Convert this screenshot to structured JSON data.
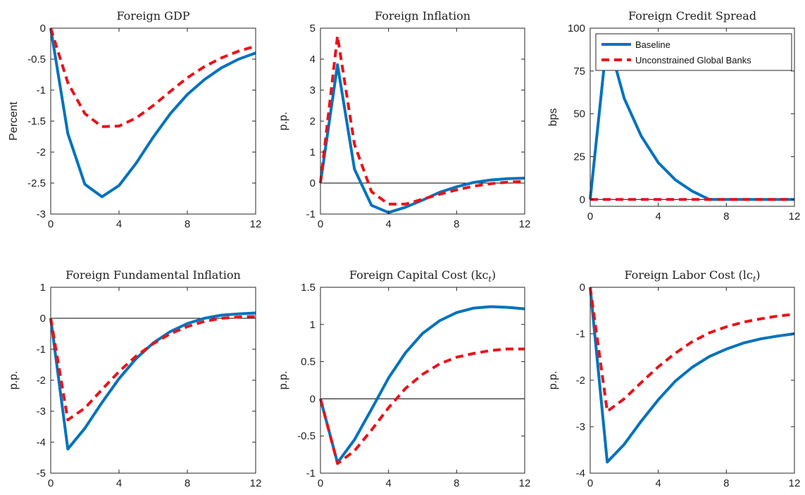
{
  "chart_data": [
    {
      "type": "line",
      "title": "Foreign GDP",
      "ylabel": "Percent",
      "x": [
        0,
        1,
        2,
        3,
        4,
        5,
        6,
        7,
        8,
        9,
        10,
        11,
        12
      ],
      "xticks": [
        0,
        4,
        8,
        12
      ],
      "yticks": [
        0,
        -0.5,
        -1,
        -1.5,
        -2,
        -2.5,
        -3
      ],
      "ytick_labels": [
        "0",
        "-0.5",
        "-1",
        "-1.5",
        "-2",
        "-2.5",
        "-3"
      ],
      "ylim": [
        -3,
        0
      ],
      "zero_line": false,
      "series": [
        {
          "name": "Baseline",
          "values": [
            0,
            -1.7,
            -2.52,
            -2.72,
            -2.54,
            -2.18,
            -1.76,
            -1.38,
            -1.07,
            -0.83,
            -0.64,
            -0.5,
            -0.4
          ]
        },
        {
          "name": "Unconstrained Global Banks",
          "values": [
            0,
            -0.88,
            -1.38,
            -1.59,
            -1.58,
            -1.45,
            -1.25,
            -1.02,
            -0.8,
            -0.62,
            -0.48,
            -0.37,
            -0.29
          ]
        }
      ]
    },
    {
      "type": "line",
      "title": "Foreign Inflation",
      "ylabel": "p.p.",
      "x": [
        0,
        1,
        2,
        3,
        4,
        5,
        6,
        7,
        8,
        9,
        10,
        11,
        12
      ],
      "xticks": [
        0,
        4,
        8,
        12
      ],
      "yticks": [
        5,
        4,
        3,
        2,
        1,
        0,
        -1
      ],
      "ytick_labels": [
        "5",
        "4",
        "3",
        "2",
        "1",
        "0",
        "-1"
      ],
      "ylim": [
        -1,
        5
      ],
      "zero_line": true,
      "series": [
        {
          "name": "Baseline",
          "values": [
            0,
            3.82,
            0.45,
            -0.72,
            -0.95,
            -0.78,
            -0.55,
            -0.3,
            -0.12,
            0.02,
            0.1,
            0.14,
            0.16
          ]
        },
        {
          "name": "Unconstrained Global Banks",
          "values": [
            0,
            4.75,
            1.25,
            -0.28,
            -0.68,
            -0.68,
            -0.52,
            -0.36,
            -0.22,
            -0.1,
            -0.02,
            0.03,
            0.05
          ]
        }
      ]
    },
    {
      "type": "line",
      "title": "Foreign Credit Spread",
      "ylabel": "bps",
      "x": [
        0,
        1,
        2,
        3,
        4,
        5,
        6,
        7,
        8,
        9,
        10,
        11,
        12
      ],
      "xticks": [
        0,
        4,
        8,
        12
      ],
      "yticks": [
        100,
        75,
        50,
        25,
        0
      ],
      "ytick_labels": [
        "100",
        "75",
        "50",
        "25",
        "0"
      ],
      "ylim": [
        -4,
        100
      ],
      "zero_line": true,
      "legend": {
        "position": "top-right",
        "entries": [
          "Baseline",
          "Unconstrained Global Banks"
        ]
      },
      "series": [
        {
          "name": "Baseline",
          "values": [
            0,
            95,
            59,
            37,
            21.5,
            11.5,
            4.8,
            0,
            0,
            0,
            0,
            0,
            0
          ]
        },
        {
          "name": "Unconstrained Global Banks",
          "values": [
            0,
            0,
            0,
            0,
            0,
            0,
            0,
            0,
            0,
            0,
            0,
            0,
            0
          ]
        }
      ]
    },
    {
      "type": "line",
      "title": "Foreign Fundamental Inflation",
      "ylabel": "p.p.",
      "x": [
        0,
        1,
        2,
        3,
        4,
        5,
        6,
        7,
        8,
        9,
        10,
        11,
        12
      ],
      "xticks": [
        0,
        4,
        8,
        12
      ],
      "yticks": [
        1,
        0,
        -1,
        -2,
        -3,
        -4,
        -5
      ],
      "ytick_labels": [
        "1",
        "0",
        "-1",
        "-2",
        "-3",
        "-4",
        "-5"
      ],
      "ylim": [
        -5,
        1
      ],
      "zero_line": true,
      "series": [
        {
          "name": "Baseline",
          "values": [
            0,
            -4.22,
            -3.55,
            -2.72,
            -1.95,
            -1.3,
            -0.8,
            -0.43,
            -0.17,
            0.0,
            0.1,
            0.14,
            0.17
          ]
        },
        {
          "name": "Unconstrained Global Banks",
          "values": [
            0,
            -3.28,
            -2.9,
            -2.3,
            -1.72,
            -1.22,
            -0.82,
            -0.5,
            -0.27,
            -0.1,
            0.0,
            0.04,
            0.06
          ]
        }
      ]
    },
    {
      "type": "line",
      "title": "Foreign Capital Cost (kc",
      "title_subscript": "t",
      "ylabel": "p.p.",
      "x": [
        0,
        1,
        2,
        3,
        4,
        5,
        6,
        7,
        8,
        9,
        10,
        11,
        12
      ],
      "xticks": [
        0,
        4,
        8,
        12
      ],
      "yticks": [
        1.5,
        1,
        0.5,
        0,
        -0.5,
        -1
      ],
      "ytick_labels": [
        "1.5",
        "1",
        "0.5",
        "0",
        "-0.5",
        "-1"
      ],
      "ylim": [
        -1,
        1.5
      ],
      "zero_line": true,
      "series": [
        {
          "name": "Baseline",
          "values": [
            0,
            -0.86,
            -0.55,
            -0.14,
            0.28,
            0.62,
            0.88,
            1.05,
            1.16,
            1.22,
            1.24,
            1.23,
            1.21
          ]
        },
        {
          "name": "Unconstrained Global Banks",
          "values": [
            0,
            -0.87,
            -0.7,
            -0.42,
            -0.12,
            0.14,
            0.33,
            0.47,
            0.56,
            0.61,
            0.65,
            0.67,
            0.67
          ]
        }
      ]
    },
    {
      "type": "line",
      "title": "Foreign Labor Cost (lc",
      "title_subscript": "t",
      "ylabel": "p.p.",
      "x": [
        0,
        1,
        2,
        3,
        4,
        5,
        6,
        7,
        8,
        9,
        10,
        11,
        12
      ],
      "xticks": [
        0,
        4,
        8,
        12
      ],
      "yticks": [
        0,
        -1,
        -2,
        -3,
        -4
      ],
      "ytick_labels": [
        "0",
        "-1",
        "-2",
        "-3",
        "-4"
      ],
      "ylim": [
        -4,
        0
      ],
      "zero_line": false,
      "series": [
        {
          "name": "Baseline",
          "values": [
            0,
            -3.76,
            -3.38,
            -2.88,
            -2.42,
            -2.02,
            -1.72,
            -1.49,
            -1.33,
            -1.2,
            -1.11,
            -1.05,
            -1.0
          ]
        },
        {
          "name": "Unconstrained Global Banks",
          "values": [
            0,
            -2.67,
            -2.4,
            -2.05,
            -1.71,
            -1.42,
            -1.17,
            -0.98,
            -0.85,
            -0.75,
            -0.68,
            -0.62,
            -0.58
          ]
        }
      ]
    }
  ]
}
